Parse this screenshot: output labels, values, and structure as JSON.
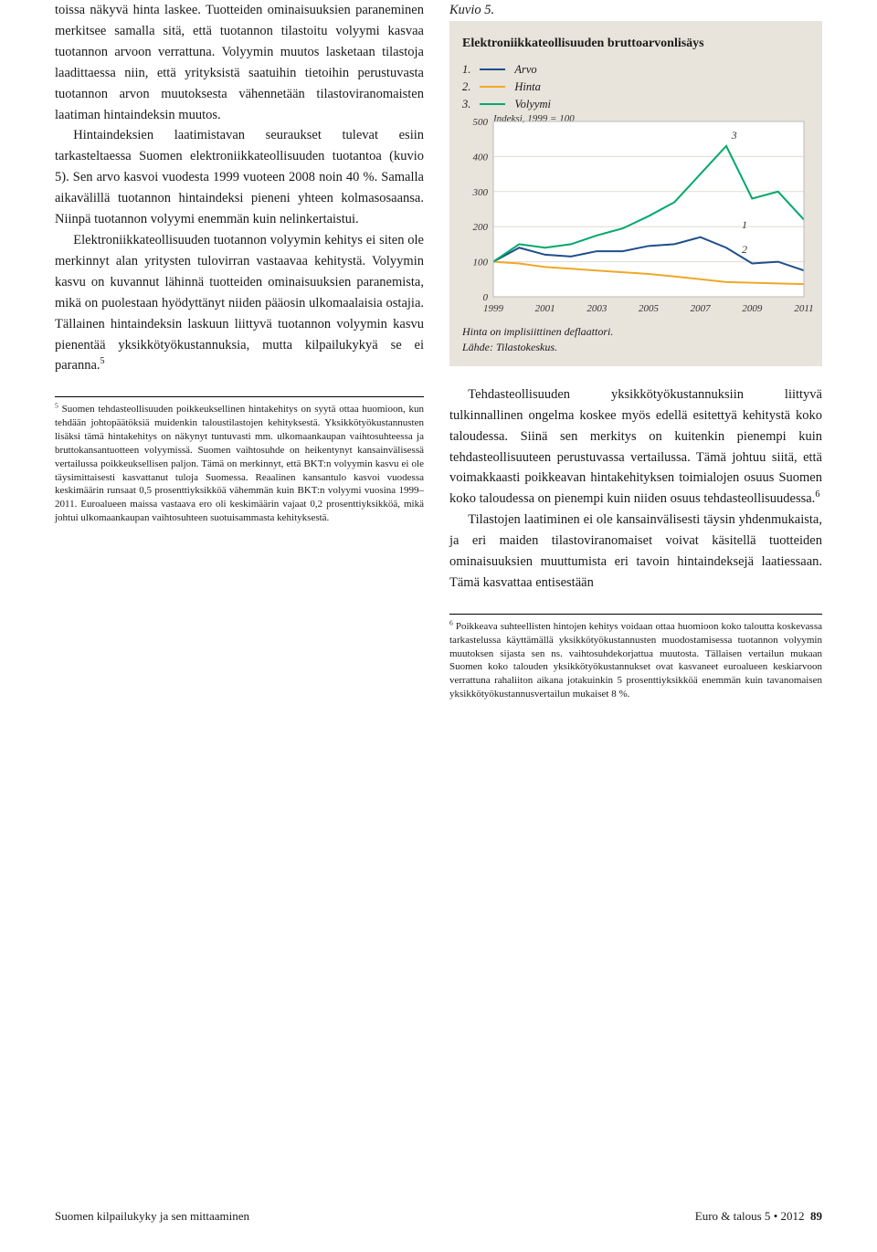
{
  "left_column": {
    "paragraphs": [
      "toissa näkyvä hinta laskee. Tuotteiden ominaisuuksien paraneminen merkitsee samalla sitä, että tuotannon tilastoitu volyymi kasvaa tuotannon arvoon verrattuna. Volyymin muutos lasketaan tilastoja laadittaessa niin, että yrityksistä saatuihin tietoihin perustuvasta tuotannon arvon muutoksesta vähennetään tilastoviranomaisten laatiman hintaindeksin muutos.",
      "Hintaindeksien laatimistavan seuraukset tulevat esiin tarkasteltaessa Suomen elektroniikkateollisuuden tuotantoa (kuvio 5). Sen arvo kasvoi vuodesta 1999 vuoteen 2008 noin 40 %. Samalla aikavälillä tuotannon hintaindeksi pieneni yhteen kolmasosaansa. Niinpä tuotannon volyymi enemmän kuin nelinkertaistui.",
      "Elektroniikkateollisuuden tuotannon volyymin kehitys ei siten ole merkinnyt alan yritysten tulovirran vastaavaa kehitystä. Volyymin kasvu on kuvannut lähinnä tuotteiden ominaisuuksien paranemista, mikä on puolestaan hyödyttänyt niiden pääosin ulkomaalaisia ostajia. Tällainen hintaindeksin laskuun liittyvä tuotannon volyymin kasvu pienentää yksikkötyökustannuksia, mutta kilpailukykyä se ei paranna."
    ],
    "footnote_marker": "5",
    "footnote_text": "Suomen tehdasteollisuuden poikkeuksellinen hintakehitys on syytä ottaa huomioon, kun tehdään johtopäätöksiä muidenkin taloustilastojen kehityksestä. Yksikkötyökustannusten lisäksi tämä hintakehitys on näkynyt tuntuvasti mm. ulkomaankaupan vaihtosuhteessa ja bruttokansantuotteen volyymissä. Suomen vaihtosuhde on heikentynyt kansainvälisessä vertailussa poikkeuksellisen paljon. Tämä on merkinnyt, että BKT:n volyymin kasvu ei ole täysimittaisesti kasvattanut tuloja Suomessa. Reaalinen kansantulo kasvoi vuodessa keskimäärin runsaat 0,5 prosenttiyksikköä vähemmän kuin BKT:n volyymi vuosina 1999–2011. Euroalueen maissa vastaava ero oli keskimäärin vajaat 0,2 prosenttiyksikköä, mikä johtui ulkomaankaupan vaihtosuhteen suotuisammasta kehityksestä."
  },
  "figure": {
    "label": "Kuvio 5.",
    "title": "Elektroniikkateollisuuden bruttoarvonlisäys",
    "legend": [
      {
        "num": "1.",
        "label": "Arvo",
        "color": "#1f4e8c"
      },
      {
        "num": "2.",
        "label": "Hinta",
        "color": "#f0a828"
      },
      {
        "num": "3.",
        "label": "Volyymi",
        "color": "#00a86b"
      }
    ],
    "index_label": "Indeksi, 1999 = 100",
    "ylim": [
      0,
      500
    ],
    "ytick_step": 100,
    "x_years": [
      1999,
      2001,
      2003,
      2005,
      2007,
      2009,
      2011
    ],
    "plot_bg": "#ffffff",
    "box_bg": "#e8e3db",
    "grid_color": "#e0dcd4",
    "series_line_width": 2,
    "series": {
      "arvo": {
        "color": "#1f4e8c",
        "points": [
          [
            1999,
            100
          ],
          [
            2000,
            140
          ],
          [
            2001,
            120
          ],
          [
            2002,
            115
          ],
          [
            2003,
            130
          ],
          [
            2004,
            130
          ],
          [
            2005,
            145
          ],
          [
            2006,
            150
          ],
          [
            2007,
            170
          ],
          [
            2008,
            140
          ],
          [
            2009,
            95
          ],
          [
            2010,
            100
          ],
          [
            2011,
            75
          ]
        ],
        "label_pos": [
          2008.6,
          195
        ],
        "label": "1"
      },
      "hinta": {
        "color": "#f0a828",
        "points": [
          [
            1999,
            100
          ],
          [
            2000,
            95
          ],
          [
            2001,
            85
          ],
          [
            2002,
            80
          ],
          [
            2003,
            75
          ],
          [
            2004,
            70
          ],
          [
            2005,
            65
          ],
          [
            2006,
            58
          ],
          [
            2007,
            50
          ],
          [
            2008,
            42
          ],
          [
            2009,
            40
          ],
          [
            2010,
            38
          ],
          [
            2011,
            36
          ]
        ],
        "label_pos": [
          2008.6,
          125
        ],
        "label": "2"
      },
      "volyymi": {
        "color": "#00a86b",
        "points": [
          [
            1999,
            100
          ],
          [
            2000,
            150
          ],
          [
            2001,
            140
          ],
          [
            2002,
            150
          ],
          [
            2003,
            175
          ],
          [
            2004,
            195
          ],
          [
            2005,
            230
          ],
          [
            2006,
            270
          ],
          [
            2007,
            350
          ],
          [
            2008,
            430
          ],
          [
            2009,
            280
          ],
          [
            2010,
            300
          ],
          [
            2011,
            220
          ]
        ],
        "label_pos": [
          2008.2,
          450
        ],
        "label": "3"
      }
    },
    "footnote": "Hinta on implisiittinen deflaattori.\nLähde: Tilastokeskus."
  },
  "right_column": {
    "paragraphs": [
      "Tehdasteollisuuden yksikkötyökustannuksiin liittyvä tulkinnallinen ongelma koskee myös edellä esitettyä kehitystä koko taloudessa. Siinä sen merkitys on kuitenkin pienempi kuin tehdasteollisuuteen perustuvassa vertailussa. Tämä johtuu siitä, että voimakkaasti poikkeavan hintakehityksen toimialojen osuus Suomen koko taloudessa on pienempi kuin niiden osuus tehdasteollisuudessa.",
      "Tilastojen laatiminen ei ole kansainvälisesti täysin yhdenmukaista, ja eri maiden tilastoviranomaiset voivat käsitellä tuotteiden ominaisuuksien muuttumista eri tavoin hintaindeksejä laatiessaan. Tämä kasvattaa entisestään"
    ],
    "footnote_marker_inline": "6",
    "footnote_text": "Poikkeava suhteellisten hintojen kehitys voidaan ottaa huomioon koko taloutta koskevassa tarkastelussa käyttämällä yksikkötyökustannusten muodostamisessa tuotannon volyymin muutoksen sijasta sen ns. vaihtosuhdekorjattua muutosta. Tällaisen vertailun mukaan Suomen koko talouden yksikkötyökustannukset ovat kasvaneet euroalueen keskiarvoon verrattuna rahaliiton aikana jotakuinkin 5 prosenttiyksikköä enemmän kuin tavanomaisen yksikkötyökustannusvertailun mukaiset 8 %."
  },
  "footer": {
    "left": "Suomen kilpailukyky ja sen mittaaminen",
    "right_journal": "Euro & talous 5",
    "right_year": "2012",
    "page": "89"
  }
}
